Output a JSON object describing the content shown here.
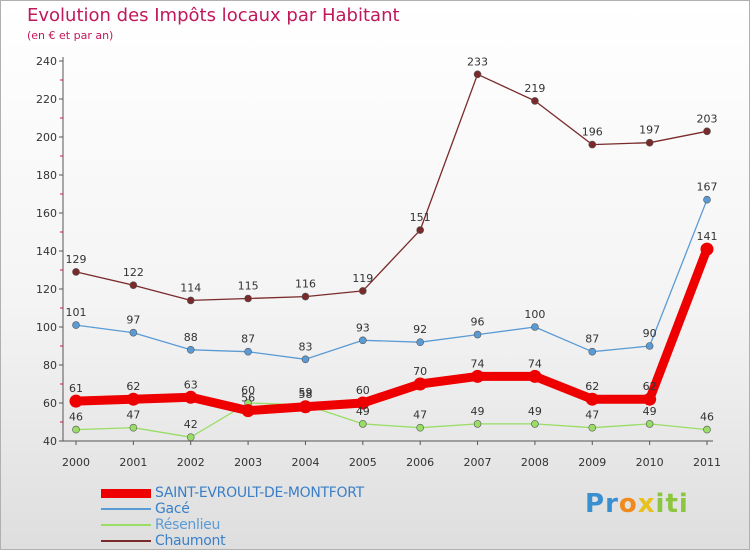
{
  "chart_data": {
    "type": "line",
    "title": "Evolution des Impôts locaux par Habitant",
    "subtitle": "(en € et par an)",
    "xlabel": "",
    "ylabel": "",
    "x": [
      "2000",
      "2001",
      "2002",
      "2003",
      "2004",
      "2005",
      "2006",
      "2007",
      "2008",
      "2009",
      "2010",
      "2011"
    ],
    "ylim": [
      40,
      240
    ],
    "yticks": [
      40,
      60,
      80,
      100,
      120,
      140,
      160,
      180,
      200,
      220,
      240
    ],
    "grid": false,
    "legend_position": "bottom-left",
    "series": [
      {
        "name": "SAINT-EVROULT-DE-MONTFORT",
        "color": "#ee0000",
        "style": "thick",
        "values": [
          61,
          62,
          63,
          56,
          58,
          60,
          70,
          74,
          74,
          62,
          62,
          141
        ]
      },
      {
        "name": "Gacé",
        "color": "#5b9bd5",
        "style": "thin",
        "values": [
          101,
          97,
          88,
          87,
          83,
          93,
          92,
          96,
          100,
          87,
          90,
          167
        ]
      },
      {
        "name": "Résenlieu",
        "color": "#99dd66",
        "style": "thin",
        "values": [
          46,
          47,
          42,
          60,
          59,
          49,
          47,
          49,
          49,
          47,
          49,
          46
        ]
      },
      {
        "name": "Chaumont",
        "color": "#7a2a2a",
        "style": "thin",
        "values": [
          129,
          122,
          114,
          115,
          116,
          119,
          151,
          233,
          219,
          196,
          197,
          203
        ]
      }
    ]
  },
  "logo": {
    "letters": [
      "P",
      "r",
      "o",
      "x",
      "i",
      "t",
      "i"
    ],
    "colors": [
      "#3a8fd0",
      "#3a8fd0",
      "#f08a1c",
      "#e8c21c",
      "#8cc63e",
      "#8cc63e",
      "#8cc63e"
    ]
  }
}
